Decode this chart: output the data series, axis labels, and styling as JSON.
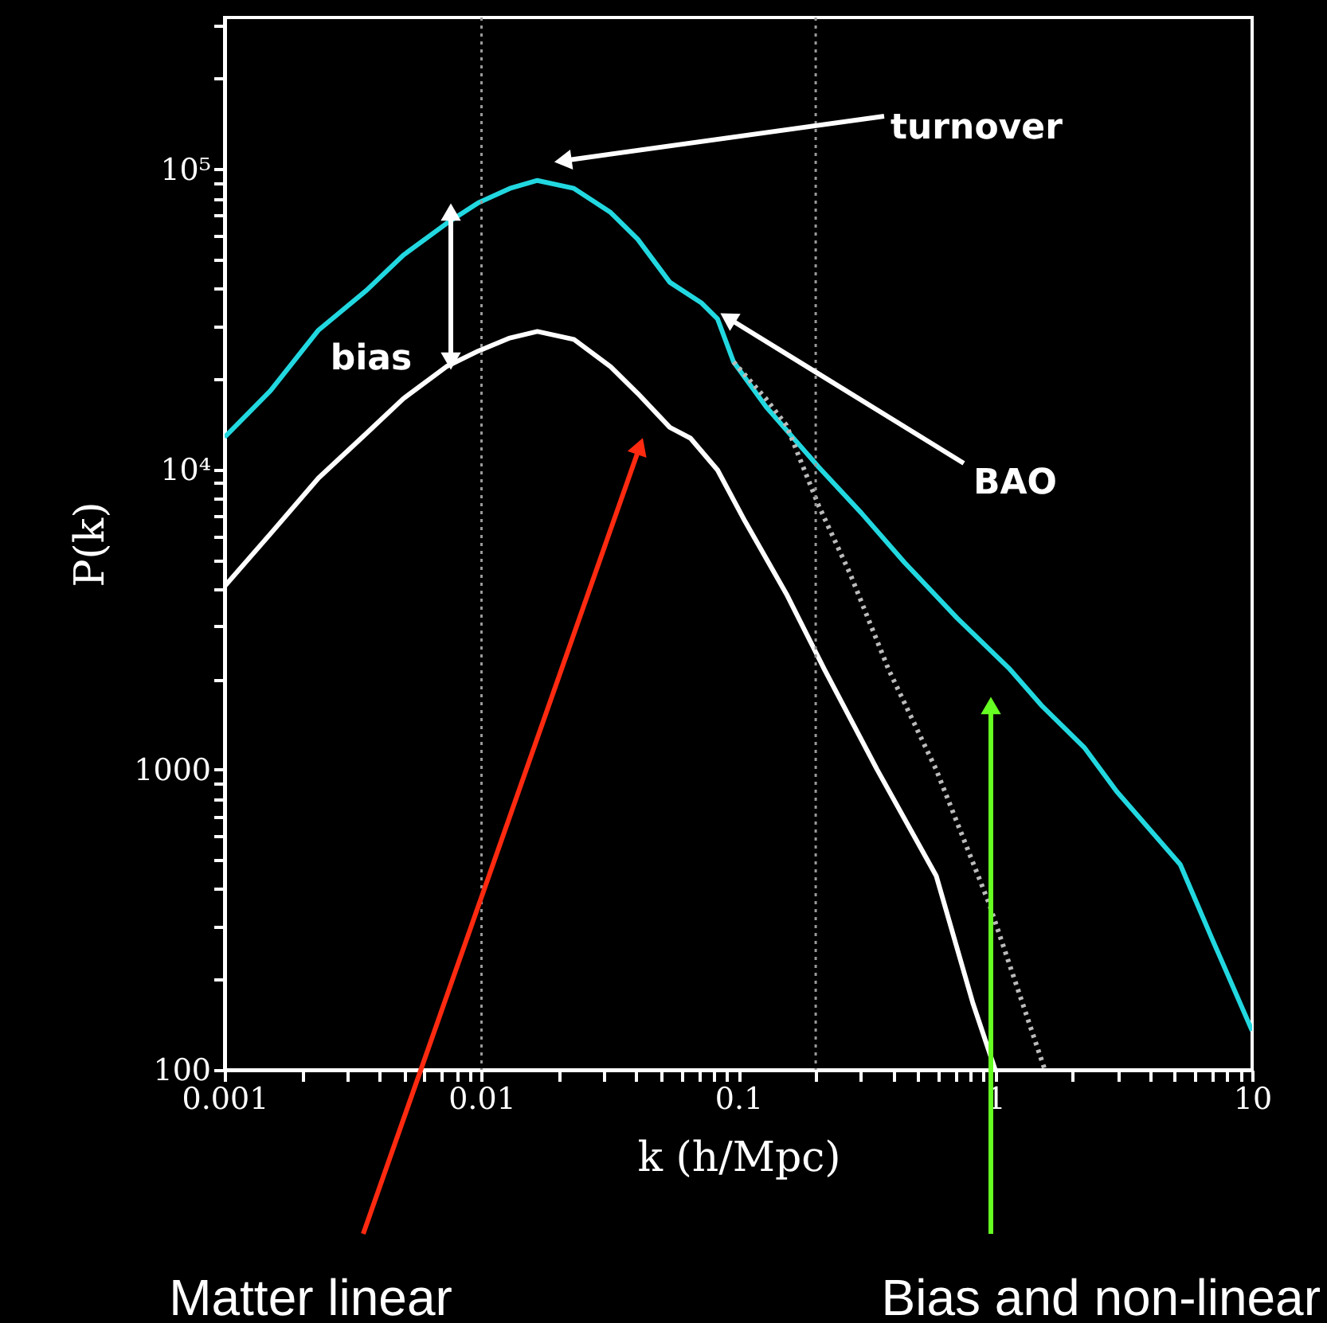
{
  "chart_data": {
    "type": "line",
    "xlabel": "k (h/Mpc)",
    "ylabel": "P(k)",
    "log": "xy",
    "xlim": [
      0.001,
      10
    ],
    "ylim": [
      100,
      320000
    ],
    "xticks": [
      0.001,
      {
        "value": 0.002,
        "label": null
      },
      {
        "value": 0.003,
        "label": null
      },
      {
        "value": 0.004,
        "label": null
      },
      {
        "value": 0.005,
        "label": null
      },
      {
        "value": 0.006,
        "label": null
      },
      {
        "value": 0.007,
        "label": null
      },
      {
        "value": 0.008,
        "label": null
      },
      {
        "value": 0.009,
        "label": null
      },
      0.01,
      {
        "value": 0.02,
        "label": null
      },
      {
        "value": 0.03,
        "label": null
      },
      {
        "value": 0.04,
        "label": null
      },
      {
        "value": 0.05,
        "label": null
      },
      {
        "value": 0.06,
        "label": null
      },
      {
        "value": 0.07,
        "label": null
      },
      {
        "value": 0.08,
        "label": null
      },
      {
        "value": 0.09,
        "label": null
      },
      0.1,
      {
        "value": 0.2,
        "label": null
      },
      {
        "value": 0.3,
        "label": null
      },
      {
        "value": 0.4,
        "label": null
      },
      {
        "value": 0.5,
        "label": null
      },
      {
        "value": 0.6,
        "label": null
      },
      {
        "value": 0.7,
        "label": null
      },
      {
        "value": 0.8,
        "label": null
      },
      {
        "value": 0.9,
        "label": null
      },
      1,
      {
        "value": 2,
        "label": null
      },
      {
        "value": 3,
        "label": null
      },
      {
        "value": 4,
        "label": null
      },
      {
        "value": 5,
        "label": null
      },
      {
        "value": 6,
        "label": null
      },
      {
        "value": 7,
        "label": null
      },
      {
        "value": 8,
        "label": null
      },
      {
        "value": 9,
        "label": null
      },
      10
    ],
    "yticks": [
      100,
      {
        "value": 200,
        "label": null
      },
      {
        "value": 300,
        "label": null
      },
      {
        "value": 400,
        "label": null
      },
      {
        "value": 500,
        "label": null
      },
      {
        "value": 600,
        "label": null
      },
      {
        "value": 700,
        "label": null
      },
      {
        "value": 800,
        "label": null
      },
      {
        "value": 900,
        "label": null
      },
      1000,
      {
        "value": 2000,
        "label": null
      },
      {
        "value": 3000,
        "label": null
      },
      {
        "value": 4000,
        "label": null
      },
      {
        "value": 5000,
        "label": null
      },
      {
        "value": 6000,
        "label": null
      },
      {
        "value": 7000,
        "label": null
      },
      {
        "value": 8000,
        "label": null
      },
      {
        "value": 9000,
        "label": null
      },
      {
        "value": 10000,
        "label": "10⁴"
      },
      {
        "value": 20000,
        "label": null
      },
      {
        "value": 30000,
        "label": null
      },
      {
        "value": 40000,
        "label": null
      },
      {
        "value": 50000,
        "label": null
      },
      {
        "value": 60000,
        "label": null
      },
      {
        "value": 70000,
        "label": null
      },
      {
        "value": 80000,
        "label": null
      },
      {
        "value": 90000,
        "label": null
      },
      {
        "value": 100000,
        "label": "10⁵"
      },
      {
        "value": 200000,
        "label": null
      },
      {
        "value": 300000,
        "label": null
      }
    ],
    "series": [
      {
        "color": "#22d8e0",
        "line_style": "solid",
        "x": [
          0.001,
          0.00151,
          0.00232,
          0.00357,
          0.00496,
          0.0073,
          0.00972,
          0.0129,
          0.0165,
          0.0229,
          0.0318,
          0.0406,
          0.0541,
          0.072,
          0.083,
          0.0958,
          0.128,
          0.205,
          0.301,
          0.443,
          0.71,
          1.14,
          1.51,
          2.23,
          2.97,
          5.25,
          7.0,
          10
        ],
        "values": [
          12800,
          18300,
          29100,
          39500,
          51700,
          65900,
          77300,
          86300,
          91700,
          86300,
          71800,
          58400,
          42000,
          35800,
          31700,
          22800,
          16200,
          10200,
          7160,
          4900,
          3200,
          2160,
          1640,
          1180,
          846,
          483,
          272,
          135
        ]
      },
      {
        "color": "#ffffff",
        "line_style": "solid",
        "x": [
          0.001,
          0.00151,
          0.00232,
          0.00357,
          0.00496,
          0.0073,
          0.00972,
          0.0129,
          0.0165,
          0.0229,
          0.0318,
          0.0406,
          0.0541,
          0.0651,
          0.083,
          0.106,
          0.154,
          0.216,
          0.347,
          0.589,
          0.818,
          1.0
        ],
        "values": [
          4080,
          6110,
          9360,
          13200,
          17200,
          22000,
          24800,
          27400,
          28800,
          27100,
          22000,
          17900,
          13800,
          12700,
          9950,
          6730,
          3840,
          2160,
          1000,
          443,
          167,
          100
        ]
      },
      {
        "color": "#bbbbbb",
        "line_style": "dotted",
        "x": [
          0.0958,
          0.128,
          0.154,
          0.205,
          0.272,
          0.384,
          0.589,
          0.944,
          1.56
        ],
        "values": [
          22800,
          17200,
          14000,
          7600,
          4500,
          2160,
          1000,
          360,
          100
        ]
      }
    ],
    "ref_lines": [
      {
        "axis": "x",
        "value": 0.01,
        "color": "#999999",
        "line_style": "dotted"
      },
      {
        "axis": "x",
        "value": 0.2,
        "color": "#999999",
        "line_style": "dotted"
      }
    ],
    "annotations": [
      {
        "text": "turnover",
        "x": 0.0213,
        "y": 107000
      },
      "bias",
      {
        "text": "BAO",
        "x": 0.093,
        "y": 31600
      },
      {
        "text": "Matter linear",
        "x": 0.041,
        "y": 11700
      },
      "Bias and non-linear"
    ]
  }
}
